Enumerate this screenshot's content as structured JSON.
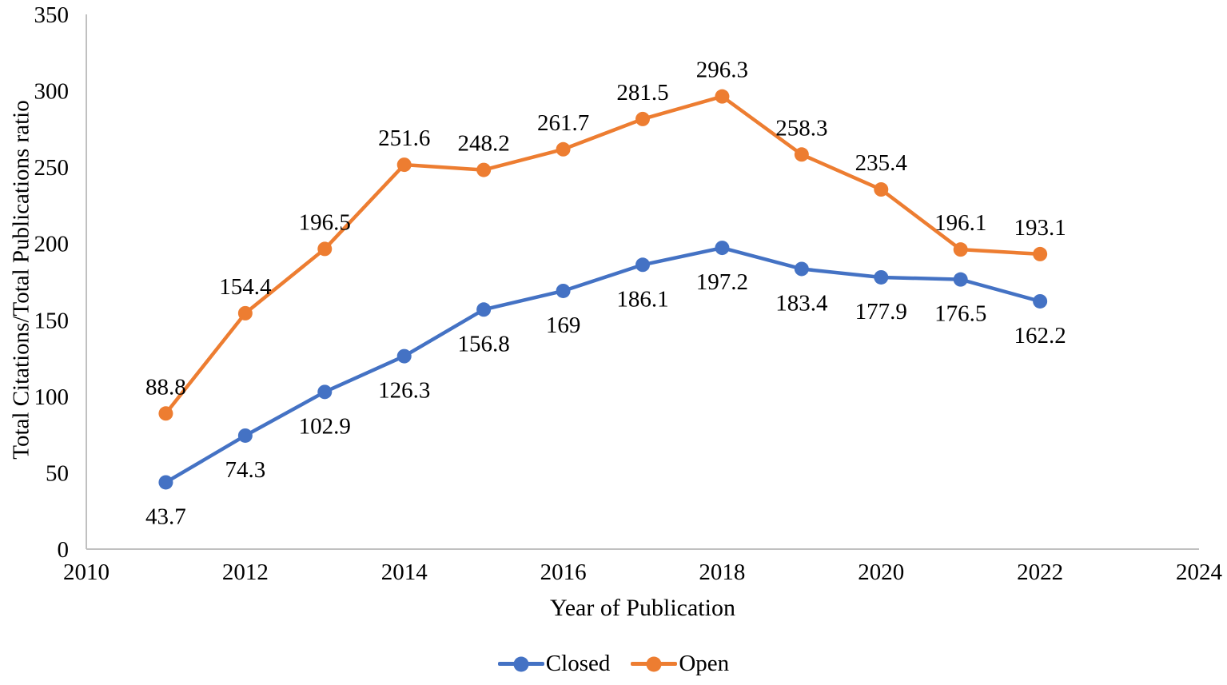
{
  "chart_data": {
    "type": "line",
    "title": "",
    "xlabel": "Year of Publication",
    "ylabel": "Total Citations/Total Publications ratio",
    "x": [
      2011,
      2012,
      2013,
      2014,
      2015,
      2016,
      2017,
      2018,
      2019,
      2020,
      2021,
      2022
    ],
    "series": [
      {
        "name": "Closed",
        "color": "#4472C4",
        "label_position": "below",
        "values": [
          43.7,
          74.3,
          102.9,
          126.3,
          156.8,
          169,
          186.1,
          197.2,
          183.4,
          177.9,
          176.5,
          162.2
        ]
      },
      {
        "name": "Open",
        "color": "#ED7D31",
        "label_position": "above",
        "values": [
          88.8,
          154.4,
          196.5,
          251.6,
          248.2,
          261.7,
          281.5,
          296.3,
          258.3,
          235.4,
          196.1,
          193.1
        ]
      }
    ],
    "xlim": [
      2010,
      2024
    ],
    "ylim": [
      0,
      350
    ],
    "xticks": [
      2010,
      2012,
      2014,
      2016,
      2018,
      2020,
      2022,
      2024
    ],
    "yticks": [
      0,
      50,
      100,
      150,
      200,
      250,
      300,
      350
    ],
    "grid": false,
    "legend_position": "bottom",
    "axis_color": "#C0C0C0",
    "text_color": "#000000"
  }
}
